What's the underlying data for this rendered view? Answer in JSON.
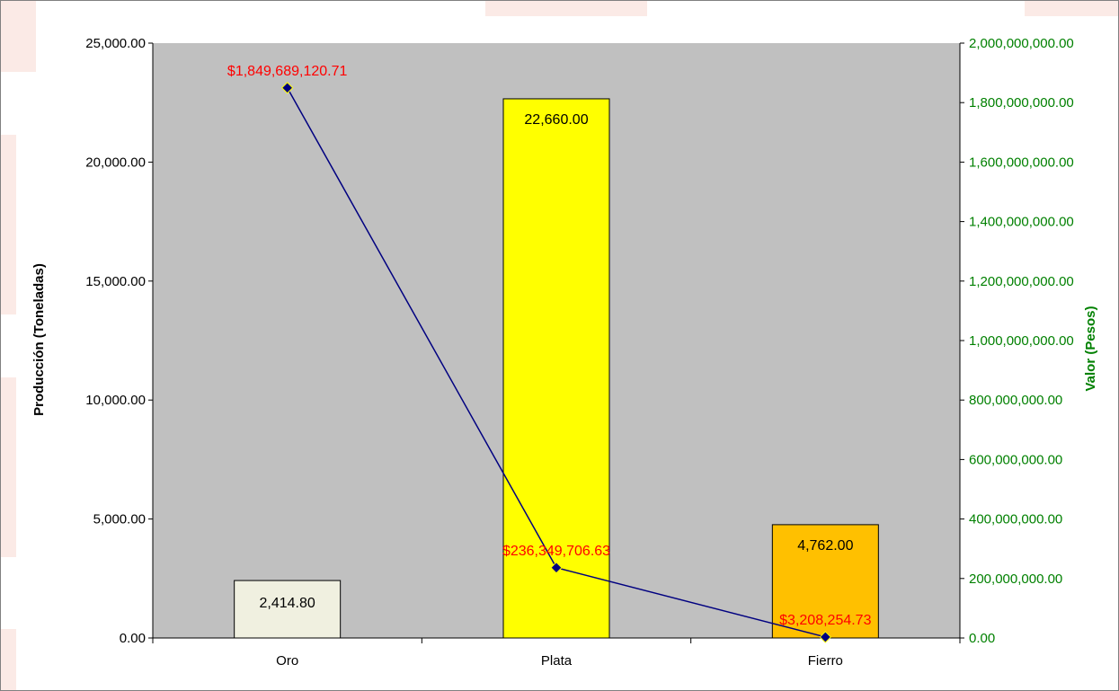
{
  "colors": {
    "plot_bg": "#c0c0c0",
    "bar_oro": "#f0f0e0",
    "bar_plata": "#ffff00",
    "bar_fierro": "#ffc000",
    "line": "#000080",
    "value_label": "#ff0000",
    "right_axis": "#008000"
  },
  "chart_data": {
    "type": "bar",
    "categories": [
      "Oro",
      "Plata",
      "Fierro"
    ],
    "series": [
      {
        "type": "bar",
        "axis": "left",
        "values": [
          2414.8,
          22660,
          4762
        ],
        "labels": [
          "2,414.80",
          "22,660.00",
          "4,762.00"
        ]
      },
      {
        "type": "line",
        "axis": "right",
        "values": [
          1849689120.71,
          236349706.63,
          3208254.73
        ],
        "labels": [
          "$1,849,689,120.71",
          "$236,349,706.63",
          "$3,208,254.73"
        ]
      }
    ],
    "ylabel": "Producción (Toneladas)",
    "y2label": "Valor (Pesos)",
    "ylim": [
      0,
      25000
    ],
    "y2lim": [
      0,
      2000000000
    ],
    "yticks": [
      "0.00",
      "5,000.00",
      "10,000.00",
      "15,000.00",
      "20,000.00",
      "25,000.00"
    ],
    "y2ticks": [
      "0.00",
      "200,000,000.00",
      "400,000,000.00",
      "600,000,000.00",
      "800,000,000.00",
      "1,000,000,000.00",
      "1,200,000,000.00",
      "1,400,000,000.00",
      "1,600,000,000.00",
      "1,800,000,000.00",
      "2,000,000,000.00"
    ],
    "grid": false,
    "legend": "none"
  }
}
